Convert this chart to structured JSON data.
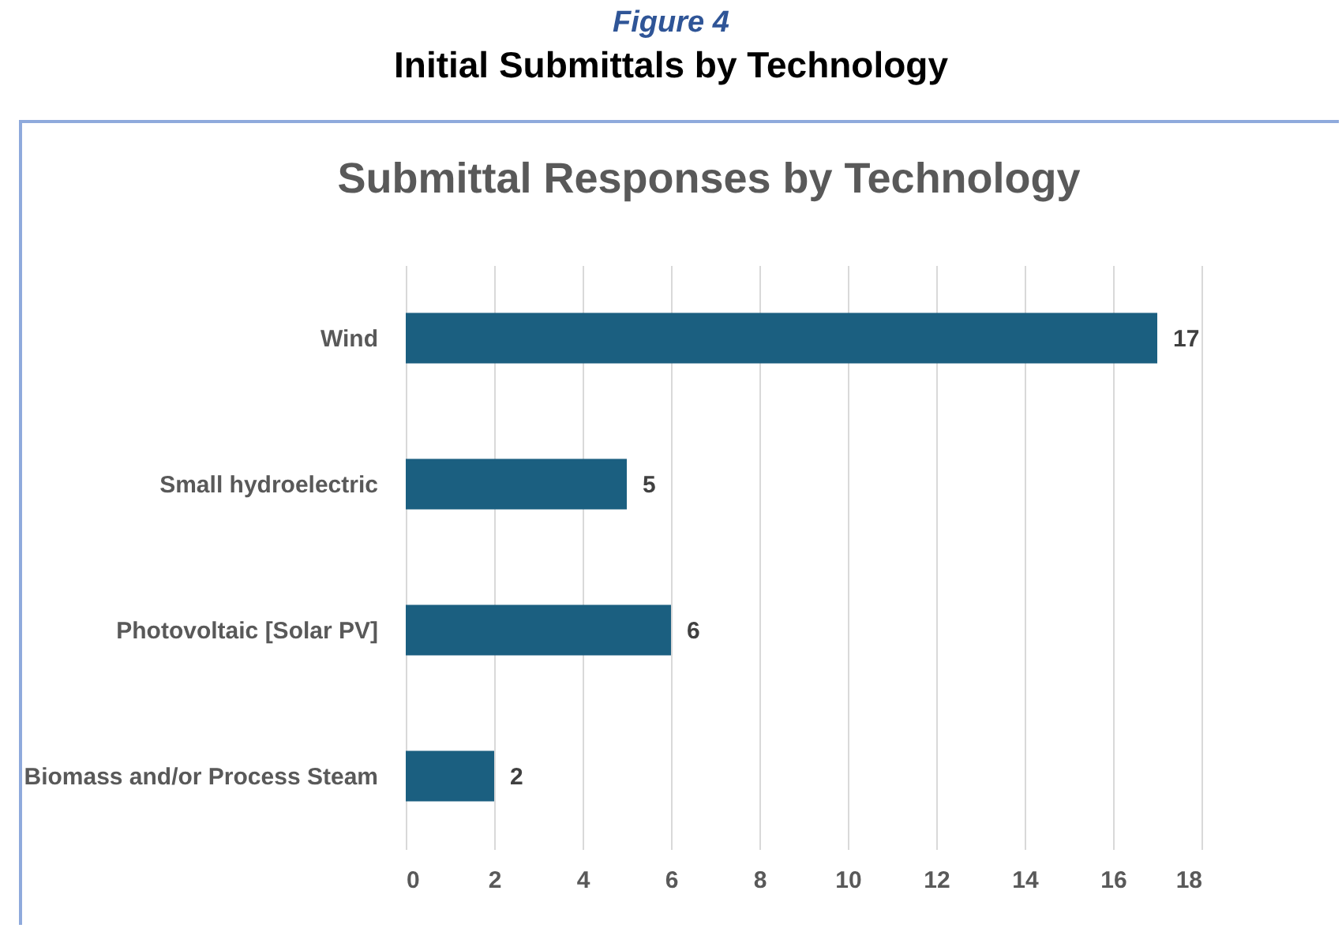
{
  "chart_data": {
    "type": "bar",
    "orientation": "horizontal",
    "title": "Submittal Responses by Technology",
    "annotations": [
      "Figure 4",
      "Initial Submittals by Technology"
    ],
    "categories": [
      "Wind",
      "Small hydroelectric",
      "Photovoltaic [Solar PV]",
      "Biomass and/or Process Steam"
    ],
    "values": [
      17,
      5,
      6,
      2
    ],
    "color": "#1b5f80",
    "xlim": [
      0,
      18
    ],
    "xticks": [
      0,
      2,
      4,
      6,
      8,
      10,
      12,
      14,
      16,
      18
    ],
    "grid": "x",
    "data_labels": true
  }
}
